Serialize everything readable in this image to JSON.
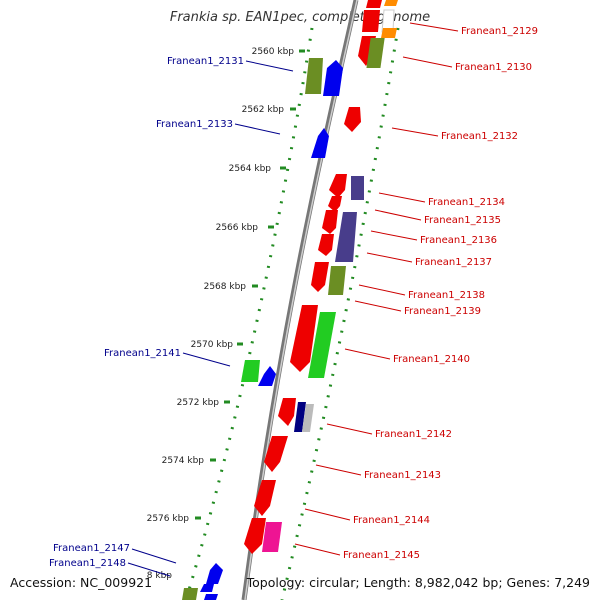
{
  "title": "Frankia sp. EAN1pec, complete genome",
  "footer": {
    "accession": "Accession: NC_009921",
    "topology": "Topology: circular; Length: 8,982,042 bp; Genes: 7,249"
  },
  "kbp_labels": [
    "2560 kbp",
    "2562 kbp",
    "2564 kbp",
    "2566 kbp",
    "2568 kbp",
    "2570 kbp",
    "2572 kbp",
    "2574 kbp",
    "2576 kbp",
    "8 kbp"
  ],
  "left_genes": [
    "Franean1_2131",
    "Franean1_2133",
    "Franean1_2141",
    "Franean1_2147",
    "Franean1_2148"
  ],
  "right_genes": [
    "Franean1_2129",
    "Franean1_2130",
    "Franean1_2132",
    "Franean1_2134",
    "Franean1_2135",
    "Franean1_2136",
    "Franean1_2137",
    "Franean1_2138",
    "Franean1_2139",
    "Franean1_2140",
    "Franean1_2142",
    "Franean1_2143",
    "Franean1_2144",
    "Franean1_2145"
  ],
  "colors": {
    "left_label": "#00008b",
    "right_label": "#cc0000",
    "axis": "#888888",
    "tick": "#228b22",
    "red": "#ee0000",
    "olive": "#6b8e23",
    "blue": "#0000ee",
    "navy_purple": "#483d8b",
    "green": "#22cc22",
    "magenta": "#ee1493",
    "orange": "#ff8c00",
    "navy": "#000080"
  }
}
